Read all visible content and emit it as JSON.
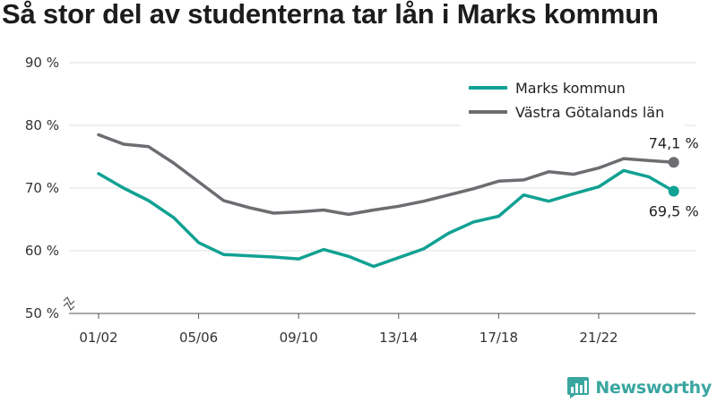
{
  "title": "Så stor del av studenterna tar lån i Marks kommun",
  "brand": {
    "name": "Newsworthy",
    "color": "#3aa6a0"
  },
  "colors": {
    "marks": "#11a193",
    "vastra": "#6d6c71",
    "grid": "#e2e2e2",
    "axis": "#555555"
  },
  "chart_data": {
    "type": "line",
    "title": "Så stor del av studenterna tar lån i Marks kommun",
    "xlabel": "",
    "ylabel": "",
    "ylim": [
      50,
      90
    ],
    "y_ticks": [
      50,
      60,
      70,
      80,
      90
    ],
    "y_tick_labels": [
      "50 %",
      "60 %",
      "70 %",
      "80 %",
      "90 %"
    ],
    "y_axis_break": true,
    "x": [
      "01/02",
      "02/03",
      "03/04",
      "04/05",
      "05/06",
      "06/07",
      "07/08",
      "08/09",
      "09/10",
      "10/11",
      "11/12",
      "12/13",
      "13/14",
      "14/15",
      "15/16",
      "16/17",
      "17/18",
      "18/19",
      "19/20",
      "20/21",
      "21/22",
      "22/23",
      "23/24",
      "24/25"
    ],
    "x_tick_labels": [
      "01/02",
      "05/06",
      "09/10",
      "13/14",
      "17/18",
      "21/22"
    ],
    "grid": "horizontal",
    "legend": "top-right",
    "series": [
      {
        "name": "Marks kommun",
        "color": "#11a193",
        "values": [
          72.3,
          70.0,
          68.0,
          65.3,
          61.3,
          59.4,
          59.2,
          59.0,
          58.7,
          60.2,
          59.1,
          57.5,
          58.9,
          60.3,
          62.8,
          64.6,
          65.5,
          68.9,
          67.9,
          69.1,
          70.2,
          72.8,
          71.8,
          69.5
        ],
        "end_label": "69,5 %"
      },
      {
        "name": "Västra Götalands län",
        "color": "#6d6c71",
        "values": [
          78.5,
          77.0,
          76.6,
          74.0,
          71.0,
          68.0,
          66.9,
          66.0,
          66.2,
          66.5,
          65.8,
          66.5,
          67.1,
          67.9,
          68.9,
          69.9,
          71.1,
          71.3,
          72.6,
          72.2,
          73.2,
          74.7,
          74.4,
          74.1
        ],
        "end_label": "74,1 %"
      }
    ]
  }
}
